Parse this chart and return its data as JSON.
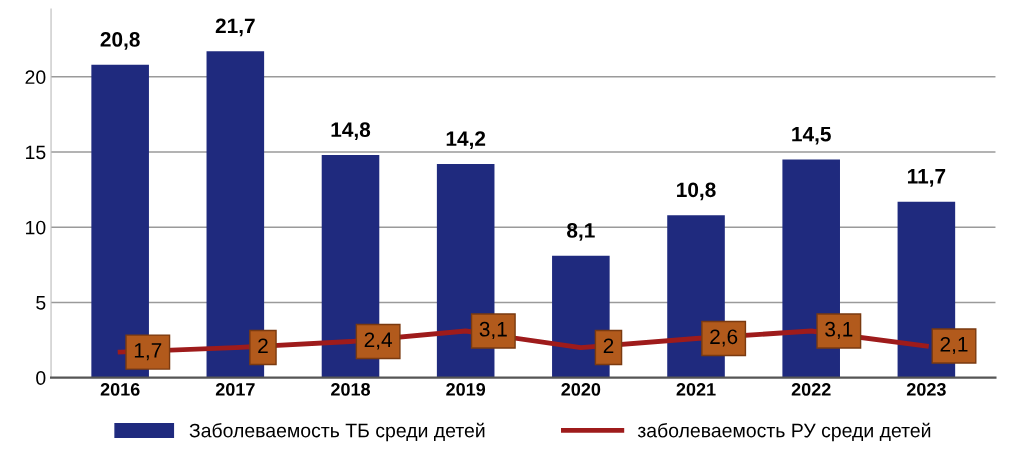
{
  "chart_data": {
    "type": "bar",
    "categories": [
      "2016",
      "2017",
      "2018",
      "2019",
      "2020",
      "2021",
      "2022",
      "2023"
    ],
    "series": [
      {
        "name": "Заболеваемость ТБ среди детей",
        "color": "#1f2a7e",
        "values": [
          20.8,
          21.7,
          14.8,
          14.2,
          8.1,
          10.8,
          14.5,
          11.7
        ],
        "value_labels": [
          "20,8",
          "21,7",
          "14,8",
          "14,2",
          "8,1",
          "10,8",
          "14,5",
          "11,7"
        ]
      },
      {
        "name": "заболеваемость РУ среди детей",
        "type": "line",
        "color": "#9e1b1b",
        "values": [
          1.7,
          2,
          2.4,
          3.1,
          2,
          2.6,
          3.1,
          2.1
        ],
        "value_labels": [
          "1,7",
          "2",
          "2,4",
          "3,1",
          "2",
          "2,6",
          "3,1",
          "2,1"
        ]
      }
    ],
    "ylim": [
      0,
      24.5
    ],
    "yticks": [
      0,
      5,
      10,
      15,
      20
    ],
    "grid": "y",
    "legend": "bottom",
    "marker": "none",
    "line_style": "solid"
  }
}
